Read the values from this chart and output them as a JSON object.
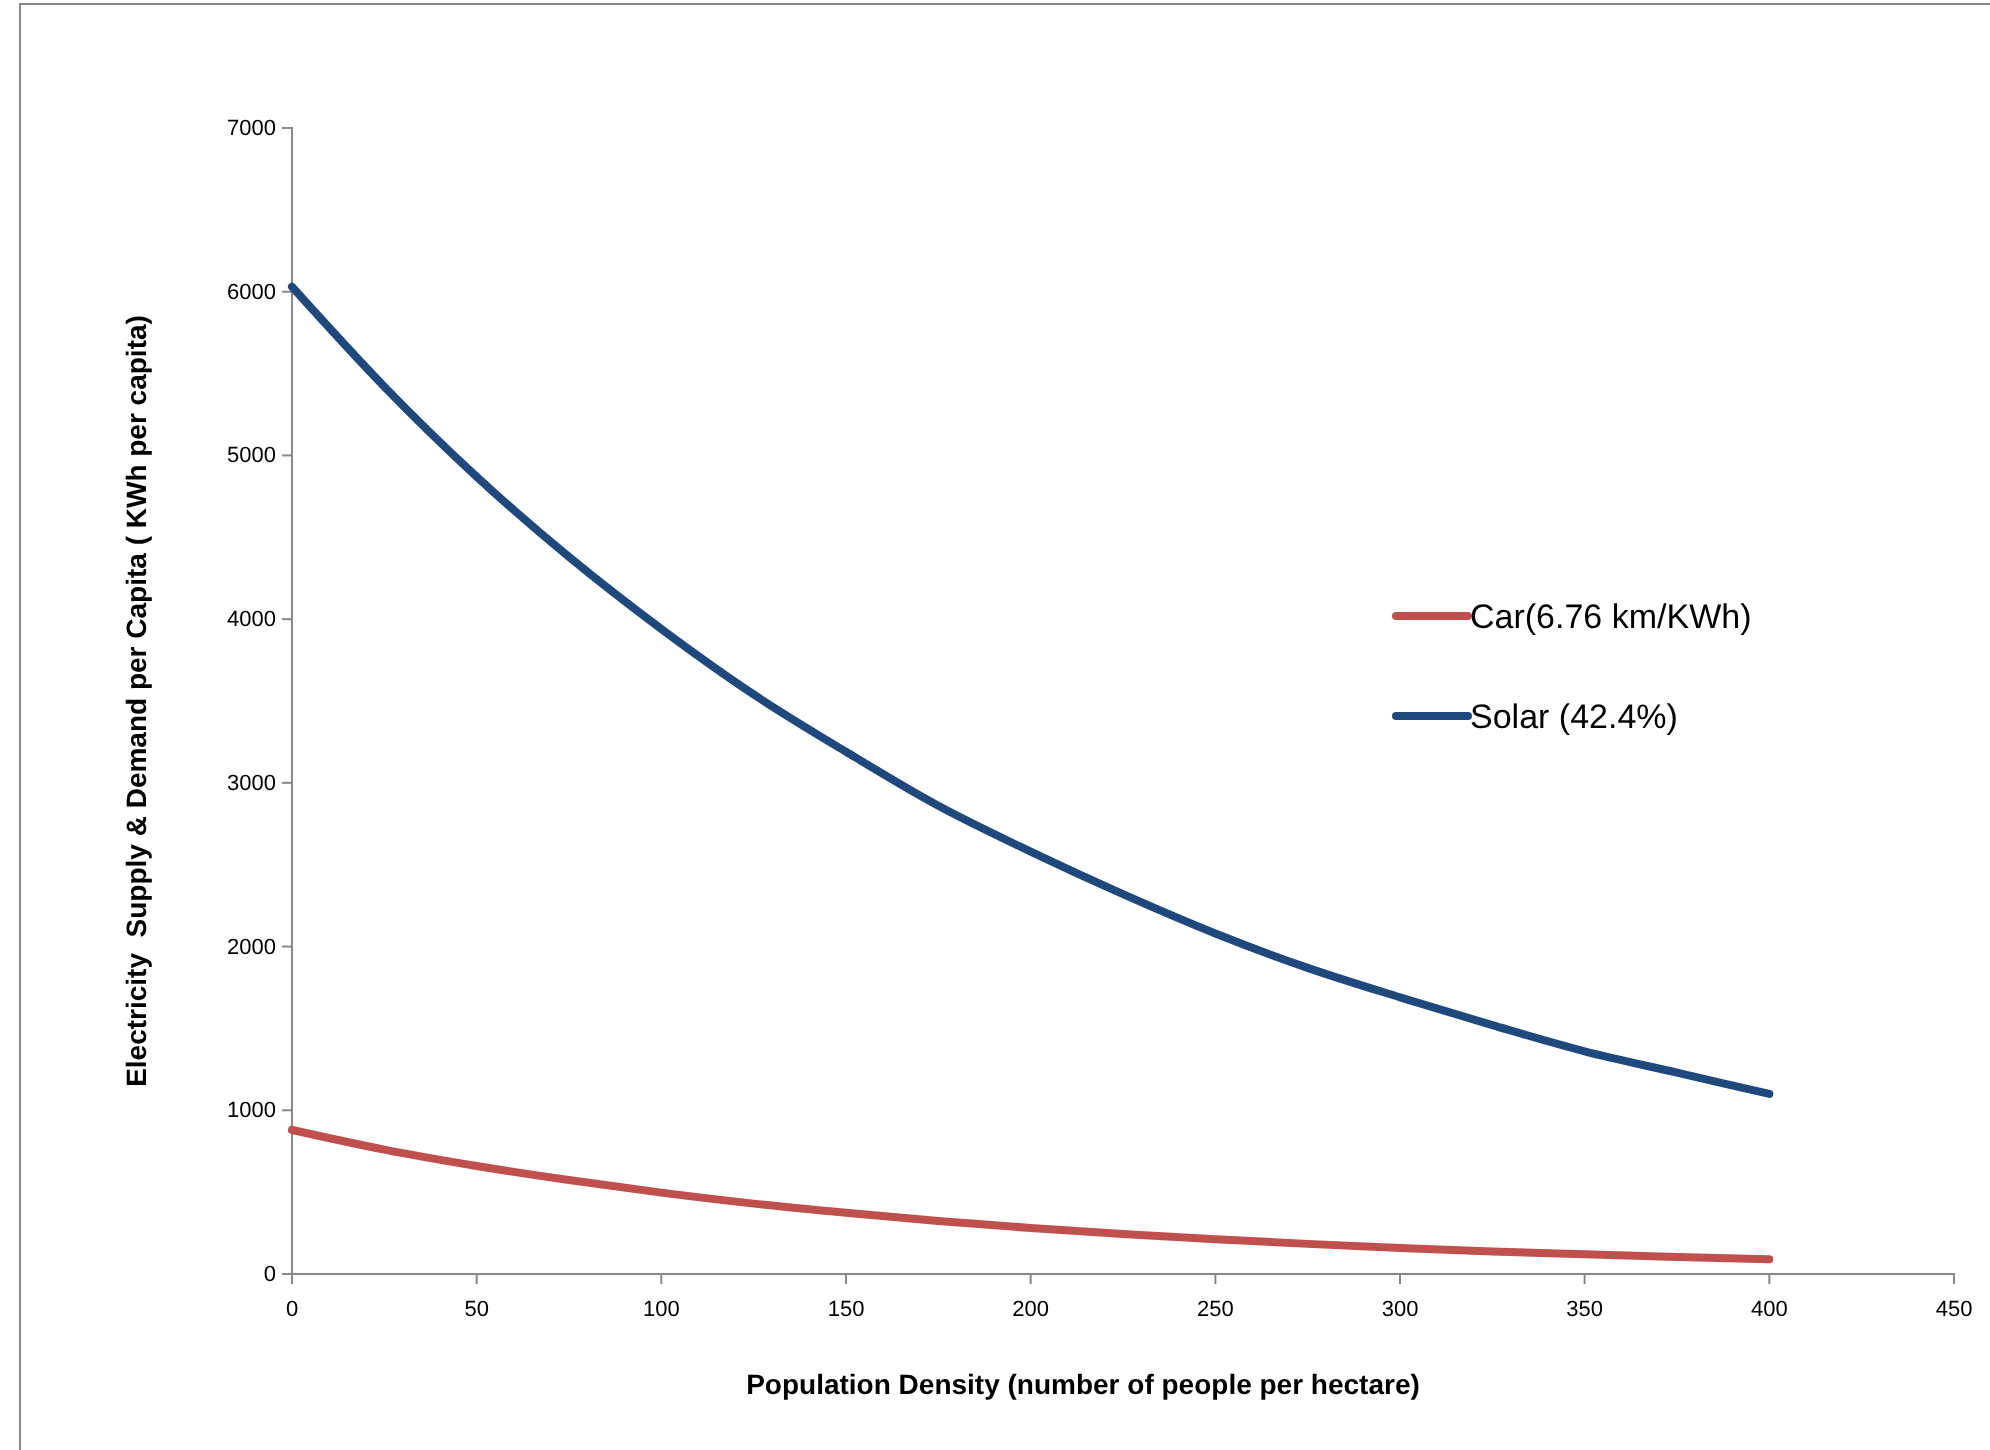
{
  "chart_data": {
    "type": "line",
    "xlabel": "Population Density (number of people per hectare)",
    "ylabel": "Electricity  Supply & Demand per Capita ( KWh per capita)",
    "xlim": [
      0,
      450
    ],
    "xticks": [
      0,
      50,
      100,
      150,
      200,
      250,
      300,
      350,
      400,
      450
    ],
    "ylim": [
      0,
      7000
    ],
    "yticks": [
      0,
      1000,
      2000,
      3000,
      4000,
      5000,
      6000,
      7000
    ],
    "x": [
      0,
      25,
      50,
      75,
      100,
      125,
      150,
      175,
      200,
      225,
      250,
      275,
      300,
      325,
      350,
      375,
      400
    ],
    "grid": false,
    "legend": "right",
    "marker": "none",
    "line_style": "solid",
    "series": [
      {
        "name": "Car(6.76 km/KWh)",
        "color": "#c0504d",
        "values": [
          880,
          760,
          660,
          574,
          497,
          430,
          374,
          324,
          281,
          244,
          212,
          184,
          159,
          138,
          120,
          104,
          90
        ]
      },
      {
        "name": "Solar (42.4%)",
        "color": "#1f497d",
        "values": [
          6030,
          5420,
          4870,
          4380,
          3940,
          3540,
          3190,
          2860,
          2580,
          2320,
          2080,
          1870,
          1690,
          1520,
          1360,
          1230,
          1100
        ]
      }
    ]
  }
}
